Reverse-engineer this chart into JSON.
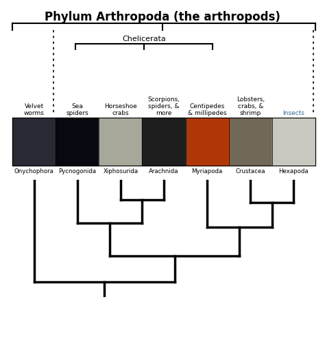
{
  "title": "Phylum Arthropoda (the arthropods)",
  "title_fontsize": 12,
  "background_color": "#ffffff",
  "groups": [
    {
      "latin": "Onychophora",
      "common": "Velvet\nworms",
      "color": "#000000"
    },
    {
      "latin": "Pycnogonida",
      "common": "Sea\nspiders",
      "color": "#000000"
    },
    {
      "latin": "Xiphosurida",
      "common": "Horseshoe\ncrabs",
      "color": "#000000"
    },
    {
      "latin": "Arachnida",
      "common": "Scorpions,\nspiders, &\nmore",
      "color": "#000000"
    },
    {
      "latin": "Myriapoda",
      "common": "Centipedes\n& millipedes",
      "color": "#000000"
    },
    {
      "latin": "Crustacea",
      "common": "Lobsters,\ncrabs, &\nshrimp",
      "color": "#000000"
    },
    {
      "latin": "Hexapoda",
      "common": "Insects",
      "color": "#336699"
    }
  ],
  "img_colors": [
    "#2a2a35",
    "#080810",
    "#a8a89a",
    "#1e1e1e",
    "#b03808",
    "#706858",
    "#c8c8c0"
  ],
  "chelicerata_label": "Chelicerata",
  "line_width": 1.5,
  "tree_lw": 2.5
}
